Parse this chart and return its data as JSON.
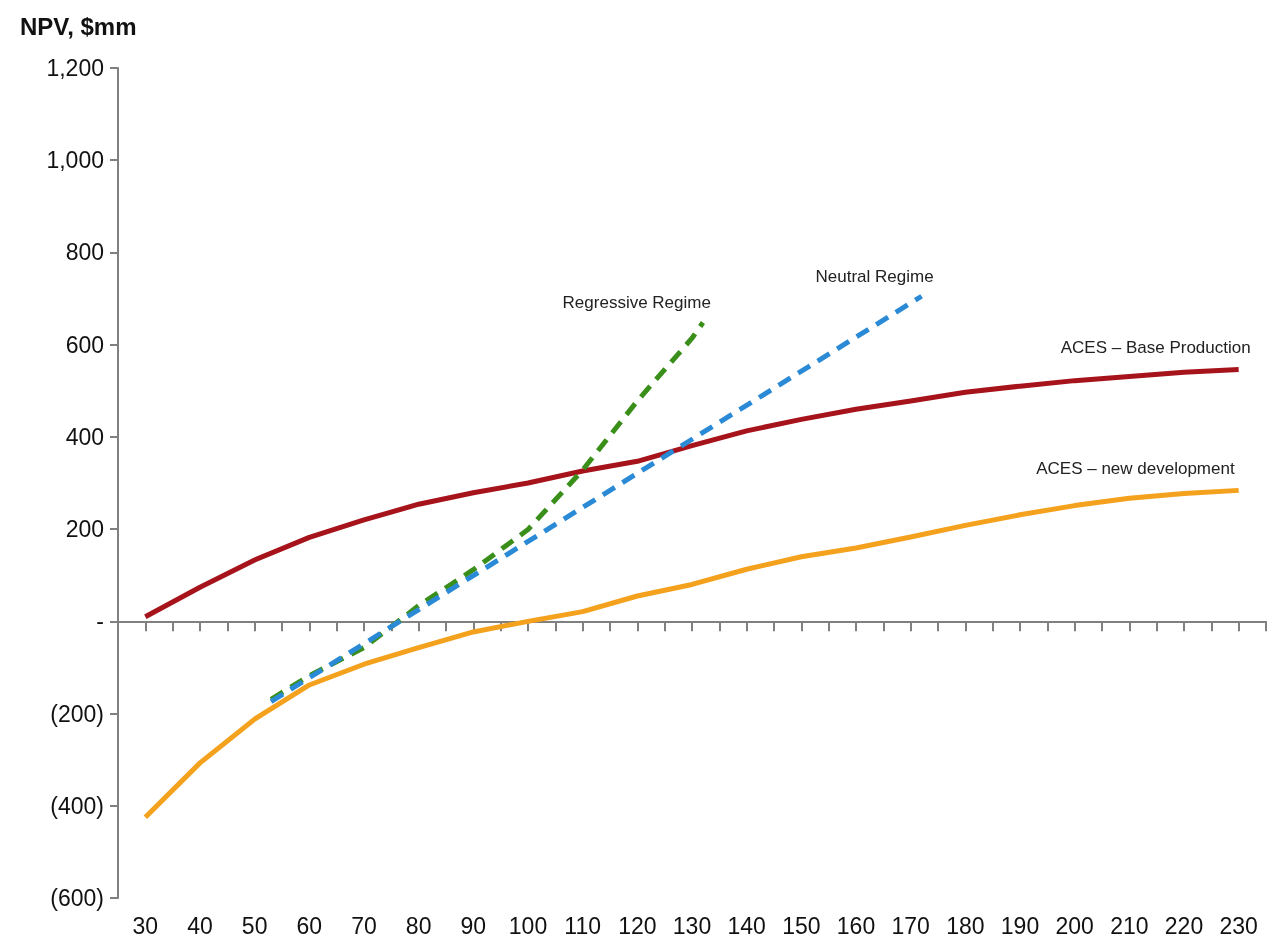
{
  "chart_data": {
    "type": "line",
    "ylabel": "NPV, $mm",
    "xlim": [
      25,
      235
    ],
    "xticks": [
      30,
      40,
      50,
      60,
      70,
      80,
      90,
      100,
      110,
      120,
      130,
      140,
      150,
      160,
      170,
      180,
      190,
      200,
      210,
      220,
      230,
      {
        "value": 25,
        "label": null
      },
      {
        "value": 35,
        "label": null
      },
      {
        "value": 45,
        "label": null
      },
      {
        "value": 55,
        "label": null
      },
      {
        "value": 65,
        "label": null
      },
      {
        "value": 75,
        "label": null
      },
      {
        "value": 85,
        "label": null
      },
      {
        "value": 95,
        "label": null
      },
      {
        "value": 105,
        "label": null
      },
      {
        "value": 115,
        "label": null
      },
      {
        "value": 125,
        "label": null
      },
      {
        "value": 135,
        "label": null
      },
      {
        "value": 145,
        "label": null
      },
      {
        "value": 155,
        "label": null
      },
      {
        "value": 165,
        "label": null
      },
      {
        "value": 175,
        "label": null
      },
      {
        "value": 185,
        "label": null
      },
      {
        "value": 195,
        "label": null
      },
      {
        "value": 205,
        "label": null
      },
      {
        "value": 215,
        "label": null
      },
      {
        "value": 225,
        "label": null
      },
      {
        "value": 235,
        "label": null
      }
    ],
    "ylim": [
      -600,
      1200
    ],
    "yticks": [
      {
        "value": -600,
        "label": "(600)"
      },
      {
        "value": -400,
        "label": "(400)"
      },
      {
        "value": -200,
        "label": "(200)"
      },
      {
        "value": 0,
        "label": "-"
      },
      200,
      400,
      600,
      800,
      {
        "value": 1000,
        "label": "1,000"
      },
      {
        "value": 1200,
        "label": "1,200"
      }
    ],
    "legend": false,
    "marker": "none",
    "series": [
      {
        "name": "ACES – Base Production",
        "color": "#a6131b",
        "line_style": "solid",
        "x": [
          30,
          40,
          50,
          60,
          70,
          80,
          90,
          100,
          110,
          120,
          130,
          140,
          150,
          160,
          170,
          180,
          190,
          200,
          210,
          220,
          230
        ],
        "values": [
          10,
          74,
          133,
          182,
          220,
          254,
          279,
          300,
          326,
          347,
          381,
          413,
          438,
          460,
          478,
          497,
          510,
          522,
          531,
          540,
          546
        ]
      },
      {
        "name": "ACES – new development",
        "color": "#f4a11d",
        "line_style": "solid",
        "x": [
          30,
          40,
          50,
          60,
          70,
          80,
          90,
          100,
          110,
          120,
          130,
          140,
          150,
          160,
          170,
          180,
          190,
          200,
          210,
          220,
          230
        ],
        "values": [
          -425,
          -307,
          -212,
          -138,
          -93,
          -57,
          -23,
          0,
          21,
          55,
          80,
          113,
          140,
          159,
          183,
          208,
          231,
          251,
          267,
          277,
          284
        ]
      },
      {
        "name": "Regressive Regime",
        "color": "#3a8f1a",
        "line_style": "dashed",
        "x": [
          53,
          60,
          70,
          80,
          90,
          100,
          110,
          120,
          130,
          132
        ],
        "values": [
          -169,
          -118,
          -57,
          34,
          112,
          199,
          328,
          478,
          614,
          648
        ]
      },
      {
        "name": "Neutral Regime",
        "color": "#2a8ad6",
        "line_style": "dashed",
        "x": [
          53,
          172
        ],
        "values": [
          -174,
          705
        ]
      }
    ]
  }
}
